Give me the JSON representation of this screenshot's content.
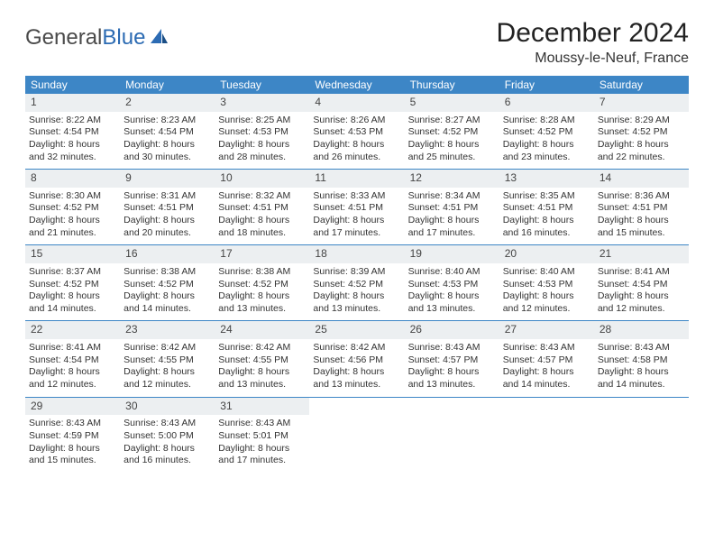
{
  "logo": {
    "text_gray": "General",
    "text_blue": "Blue"
  },
  "title": "December 2024",
  "location": "Moussy-le-Neuf, France",
  "colors": {
    "header_bg": "#3d86c6",
    "header_text": "#ffffff",
    "daynum_bg": "#eceff1",
    "row_border": "#3d86c6",
    "body_text": "#333333",
    "logo_gray": "#4a4a4a",
    "logo_blue": "#2c6bb3"
  },
  "daysOfWeek": [
    "Sunday",
    "Monday",
    "Tuesday",
    "Wednesday",
    "Thursday",
    "Friday",
    "Saturday"
  ],
  "weeks": [
    [
      {
        "n": "1",
        "sunrise": "Sunrise: 8:22 AM",
        "sunset": "Sunset: 4:54 PM",
        "daylight": "Daylight: 8 hours and 32 minutes."
      },
      {
        "n": "2",
        "sunrise": "Sunrise: 8:23 AM",
        "sunset": "Sunset: 4:54 PM",
        "daylight": "Daylight: 8 hours and 30 minutes."
      },
      {
        "n": "3",
        "sunrise": "Sunrise: 8:25 AM",
        "sunset": "Sunset: 4:53 PM",
        "daylight": "Daylight: 8 hours and 28 minutes."
      },
      {
        "n": "4",
        "sunrise": "Sunrise: 8:26 AM",
        "sunset": "Sunset: 4:53 PM",
        "daylight": "Daylight: 8 hours and 26 minutes."
      },
      {
        "n": "5",
        "sunrise": "Sunrise: 8:27 AM",
        "sunset": "Sunset: 4:52 PM",
        "daylight": "Daylight: 8 hours and 25 minutes."
      },
      {
        "n": "6",
        "sunrise": "Sunrise: 8:28 AM",
        "sunset": "Sunset: 4:52 PM",
        "daylight": "Daylight: 8 hours and 23 minutes."
      },
      {
        "n": "7",
        "sunrise": "Sunrise: 8:29 AM",
        "sunset": "Sunset: 4:52 PM",
        "daylight": "Daylight: 8 hours and 22 minutes."
      }
    ],
    [
      {
        "n": "8",
        "sunrise": "Sunrise: 8:30 AM",
        "sunset": "Sunset: 4:52 PM",
        "daylight": "Daylight: 8 hours and 21 minutes."
      },
      {
        "n": "9",
        "sunrise": "Sunrise: 8:31 AM",
        "sunset": "Sunset: 4:51 PM",
        "daylight": "Daylight: 8 hours and 20 minutes."
      },
      {
        "n": "10",
        "sunrise": "Sunrise: 8:32 AM",
        "sunset": "Sunset: 4:51 PM",
        "daylight": "Daylight: 8 hours and 18 minutes."
      },
      {
        "n": "11",
        "sunrise": "Sunrise: 8:33 AM",
        "sunset": "Sunset: 4:51 PM",
        "daylight": "Daylight: 8 hours and 17 minutes."
      },
      {
        "n": "12",
        "sunrise": "Sunrise: 8:34 AM",
        "sunset": "Sunset: 4:51 PM",
        "daylight": "Daylight: 8 hours and 17 minutes."
      },
      {
        "n": "13",
        "sunrise": "Sunrise: 8:35 AM",
        "sunset": "Sunset: 4:51 PM",
        "daylight": "Daylight: 8 hours and 16 minutes."
      },
      {
        "n": "14",
        "sunrise": "Sunrise: 8:36 AM",
        "sunset": "Sunset: 4:51 PM",
        "daylight": "Daylight: 8 hours and 15 minutes."
      }
    ],
    [
      {
        "n": "15",
        "sunrise": "Sunrise: 8:37 AM",
        "sunset": "Sunset: 4:52 PM",
        "daylight": "Daylight: 8 hours and 14 minutes."
      },
      {
        "n": "16",
        "sunrise": "Sunrise: 8:38 AM",
        "sunset": "Sunset: 4:52 PM",
        "daylight": "Daylight: 8 hours and 14 minutes."
      },
      {
        "n": "17",
        "sunrise": "Sunrise: 8:38 AM",
        "sunset": "Sunset: 4:52 PM",
        "daylight": "Daylight: 8 hours and 13 minutes."
      },
      {
        "n": "18",
        "sunrise": "Sunrise: 8:39 AM",
        "sunset": "Sunset: 4:52 PM",
        "daylight": "Daylight: 8 hours and 13 minutes."
      },
      {
        "n": "19",
        "sunrise": "Sunrise: 8:40 AM",
        "sunset": "Sunset: 4:53 PM",
        "daylight": "Daylight: 8 hours and 13 minutes."
      },
      {
        "n": "20",
        "sunrise": "Sunrise: 8:40 AM",
        "sunset": "Sunset: 4:53 PM",
        "daylight": "Daylight: 8 hours and 12 minutes."
      },
      {
        "n": "21",
        "sunrise": "Sunrise: 8:41 AM",
        "sunset": "Sunset: 4:54 PM",
        "daylight": "Daylight: 8 hours and 12 minutes."
      }
    ],
    [
      {
        "n": "22",
        "sunrise": "Sunrise: 8:41 AM",
        "sunset": "Sunset: 4:54 PM",
        "daylight": "Daylight: 8 hours and 12 minutes."
      },
      {
        "n": "23",
        "sunrise": "Sunrise: 8:42 AM",
        "sunset": "Sunset: 4:55 PM",
        "daylight": "Daylight: 8 hours and 12 minutes."
      },
      {
        "n": "24",
        "sunrise": "Sunrise: 8:42 AM",
        "sunset": "Sunset: 4:55 PM",
        "daylight": "Daylight: 8 hours and 13 minutes."
      },
      {
        "n": "25",
        "sunrise": "Sunrise: 8:42 AM",
        "sunset": "Sunset: 4:56 PM",
        "daylight": "Daylight: 8 hours and 13 minutes."
      },
      {
        "n": "26",
        "sunrise": "Sunrise: 8:43 AM",
        "sunset": "Sunset: 4:57 PM",
        "daylight": "Daylight: 8 hours and 13 minutes."
      },
      {
        "n": "27",
        "sunrise": "Sunrise: 8:43 AM",
        "sunset": "Sunset: 4:57 PM",
        "daylight": "Daylight: 8 hours and 14 minutes."
      },
      {
        "n": "28",
        "sunrise": "Sunrise: 8:43 AM",
        "sunset": "Sunset: 4:58 PM",
        "daylight": "Daylight: 8 hours and 14 minutes."
      }
    ],
    [
      {
        "n": "29",
        "sunrise": "Sunrise: 8:43 AM",
        "sunset": "Sunset: 4:59 PM",
        "daylight": "Daylight: 8 hours and 15 minutes."
      },
      {
        "n": "30",
        "sunrise": "Sunrise: 8:43 AM",
        "sunset": "Sunset: 5:00 PM",
        "daylight": "Daylight: 8 hours and 16 minutes."
      },
      {
        "n": "31",
        "sunrise": "Sunrise: 8:43 AM",
        "sunset": "Sunset: 5:01 PM",
        "daylight": "Daylight: 8 hours and 17 minutes."
      },
      null,
      null,
      null,
      null
    ]
  ]
}
